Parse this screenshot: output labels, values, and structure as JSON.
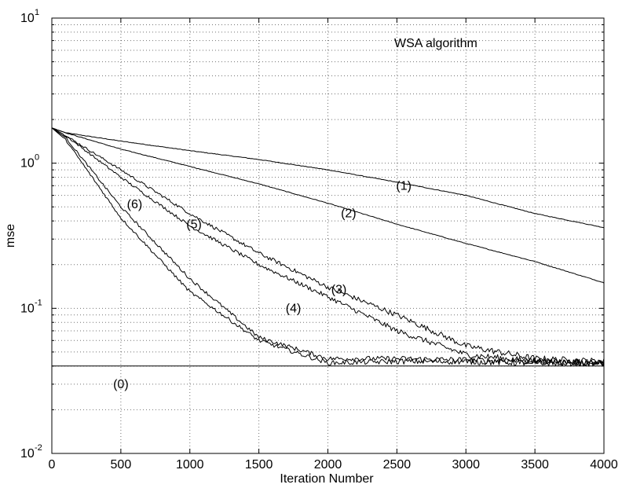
{
  "chart_data": {
    "type": "line",
    "title": "",
    "annotation": "WSA algorithm",
    "xlabel": "Iteration Number",
    "ylabel": "mse",
    "xlim": [
      0,
      4000
    ],
    "ylim": [
      0.01,
      10
    ],
    "yscale": "log",
    "grid": true,
    "x_ticks": [
      "0",
      "500",
      "1000",
      "1500",
      "2000",
      "2500",
      "3000",
      "3500",
      "4000"
    ],
    "y_ticks": [
      {
        "base": "10",
        "exp": "-2"
      },
      {
        "base": "10",
        "exp": "-1"
      },
      {
        "base": "10",
        "exp": "0"
      },
      {
        "base": "10",
        "exp": "1"
      }
    ],
    "series": [
      {
        "name": "(0)",
        "label_at": [
          500,
          0.03
        ],
        "x": [
          0,
          4000
        ],
        "y": [
          0.04,
          0.04
        ]
      },
      {
        "name": "(1)",
        "label_at": [
          2550,
          0.7
        ],
        "x": [
          0,
          100,
          500,
          1000,
          1500,
          2000,
          2500,
          3000,
          3500,
          4000
        ],
        "y": [
          1.75,
          1.62,
          1.42,
          1.22,
          1.06,
          0.9,
          0.74,
          0.6,
          0.45,
          0.36
        ]
      },
      {
        "name": "(2)",
        "label_at": [
          2150,
          0.45
        ],
        "x": [
          0,
          100,
          500,
          1000,
          1500,
          2000,
          2500,
          3000,
          3500,
          4000
        ],
        "y": [
          1.75,
          1.62,
          1.25,
          0.95,
          0.72,
          0.53,
          0.38,
          0.28,
          0.21,
          0.15
        ]
      },
      {
        "name": "(3)",
        "label_at": [
          2080,
          0.135
        ],
        "x": [
          0,
          100,
          500,
          1000,
          1500,
          2000,
          2500,
          3000,
          3500,
          4000
        ],
        "y": [
          1.75,
          1.55,
          0.9,
          0.45,
          0.24,
          0.14,
          0.09,
          0.055,
          0.045,
          0.043
        ]
      },
      {
        "name": "(4)",
        "label_at": [
          1750,
          0.1
        ],
        "x": [
          0,
          100,
          500,
          1000,
          1500,
          2000,
          2500,
          3000,
          3500,
          4000
        ],
        "y": [
          1.75,
          1.55,
          0.8,
          0.37,
          0.2,
          0.12,
          0.07,
          0.048,
          0.043,
          0.042
        ]
      },
      {
        "name": "(5)",
        "label_at": [
          1030,
          0.38
        ],
        "x": [
          0,
          100,
          500,
          1000,
          1500,
          2000,
          2500,
          3000,
          3500,
          4000
        ],
        "y": [
          1.75,
          1.5,
          0.5,
          0.16,
          0.063,
          0.045,
          0.045,
          0.044,
          0.043,
          0.042
        ]
      },
      {
        "name": "(6)",
        "label_at": [
          600,
          0.52
        ],
        "x": [
          0,
          100,
          500,
          1000,
          1500,
          2000,
          2500,
          3000,
          3500,
          4000
        ],
        "y": [
          1.75,
          1.45,
          0.42,
          0.13,
          0.06,
          0.042,
          0.043,
          0.043,
          0.042,
          0.042
        ]
      }
    ]
  }
}
